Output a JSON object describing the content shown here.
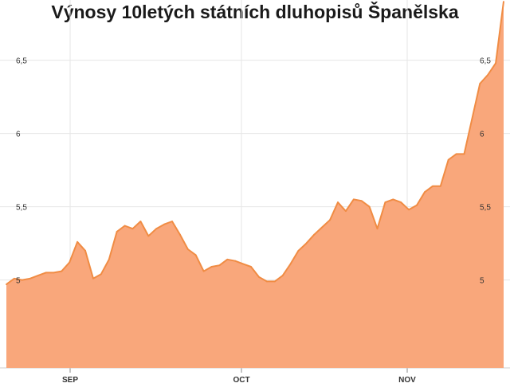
{
  "chart_data": {
    "type": "area",
    "title": "Výnosy 10letých státních dluhopisů Španělska",
    "xlabel": "",
    "ylabel": "",
    "x_ticks": [
      "SEP",
      "OCT",
      "NOV"
    ],
    "y_ticks": [
      5,
      5.5,
      6,
      6.5
    ],
    "y_tick_labels": [
      "5",
      "5,5",
      "6",
      "6,5"
    ],
    "ylim": [
      4.4,
      6.9
    ],
    "grid": true,
    "legend": "none",
    "colors": {
      "fill": "#f9a77b",
      "line": "#f08c44",
      "grid": "#e6e6e6"
    },
    "values": [
      4.97,
      5.01,
      5.0,
      5.01,
      5.03,
      5.05,
      5.05,
      5.06,
      5.12,
      5.26,
      5.2,
      5.01,
      5.04,
      5.14,
      5.33,
      5.37,
      5.35,
      5.4,
      5.3,
      5.35,
      5.38,
      5.4,
      5.31,
      5.21,
      5.17,
      5.06,
      5.09,
      5.1,
      5.14,
      5.13,
      5.11,
      5.09,
      5.02,
      4.99,
      4.99,
      5.03,
      5.11,
      5.2,
      5.25,
      5.31,
      5.36,
      5.41,
      5.53,
      5.47,
      5.55,
      5.54,
      5.5,
      5.35,
      5.53,
      5.55,
      5.53,
      5.48,
      5.51,
      5.6,
      5.64,
      5.64,
      5.82,
      5.86,
      5.86,
      6.1,
      6.34,
      6.4,
      6.48,
      6.9
    ]
  }
}
